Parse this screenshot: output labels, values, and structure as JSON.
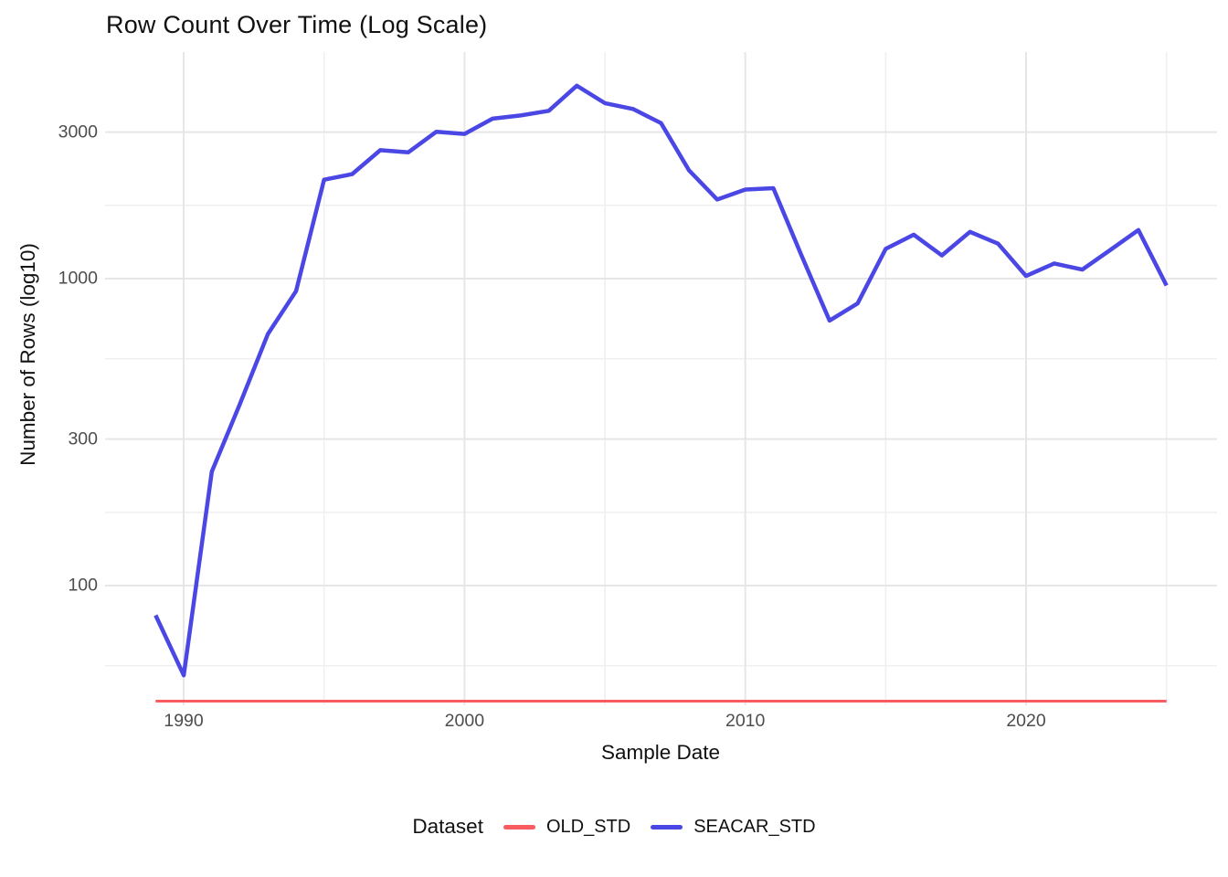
{
  "chart_data": {
    "type": "line",
    "title": "Row Count Over Time (Log Scale)",
    "xlabel": "Sample Date",
    "ylabel": "Number of Rows (log10)",
    "x_scale": "linear_years",
    "y_scale": "log10",
    "grid": true,
    "x_ticks": [
      1990,
      2000,
      2010,
      2020
    ],
    "x_minor_gridlines": [
      1995,
      2005,
      2015,
      2025
    ],
    "y_ticks": [
      100,
      300,
      1000,
      3000
    ],
    "y_minor_gridlines": [
      54.8,
      173,
      548,
      1732
    ],
    "x_range": [
      1987.2,
      2026.8
    ],
    "y_range_log10": [
      1.61,
      3.738
    ],
    "colors": {
      "major_grid": "#E6E6E6",
      "minor_grid": "#F0F0F0",
      "tick_text": "#4D4D4D",
      "title_text": "#111111"
    },
    "legend": {
      "title": "Dataset",
      "position": "bottom"
    },
    "series": [
      {
        "name": "OLD_STD",
        "color": "#F85C5F",
        "stroke_width": 3,
        "note": "flat line at ~42 rows from 1989 to 2025",
        "x": [
          1989,
          2025
        ],
        "y": [
          42,
          42
        ]
      },
      {
        "name": "SEACAR_STD",
        "color": "#4B47E4",
        "stroke_width": 4.5,
        "x": [
          1989,
          1990,
          1991,
          1992,
          1993,
          1994,
          1995,
          1996,
          1997,
          1998,
          1999,
          2000,
          2001,
          2002,
          2003,
          2004,
          2005,
          2006,
          2007,
          2008,
          2009,
          2010,
          2011,
          2012,
          2013,
          2014,
          2015,
          2016,
          2017,
          2018,
          2019,
          2020,
          2021,
          2022,
          2023,
          2024,
          2025
        ],
        "y": [
          80,
          51,
          235,
          390,
          660,
          910,
          2100,
          2190,
          2620,
          2580,
          3010,
          2960,
          3320,
          3400,
          3520,
          4250,
          3730,
          3570,
          3210,
          2250,
          1810,
          1950,
          1970,
          1190,
          730,
          830,
          1250,
          1390,
          1190,
          1420,
          1300,
          1020,
          1120,
          1070,
          1240,
          1440,
          950
        ]
      }
    ]
  }
}
